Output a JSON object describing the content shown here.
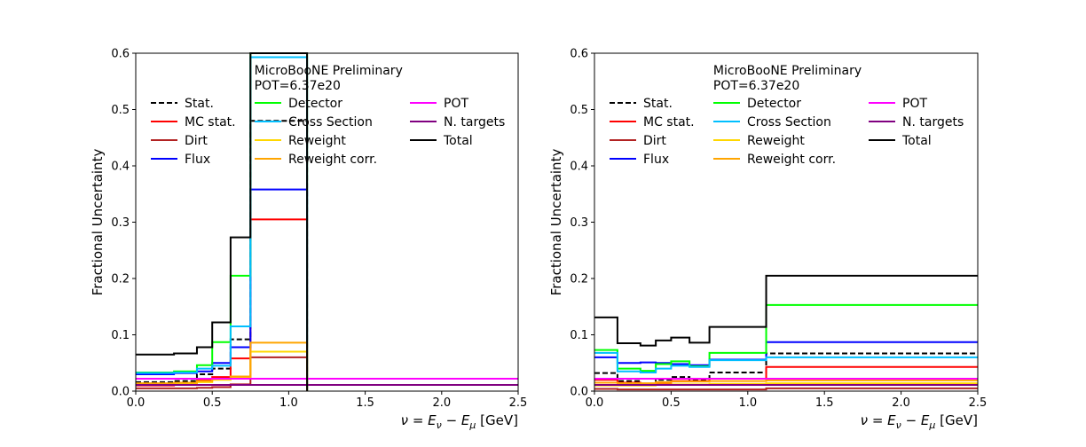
{
  "chart_data": [
    {
      "type": "step",
      "annotation": [
        "MicroBooNE Preliminary",
        "POT=6.37e20"
      ],
      "xlabel": "ν = E_ν − E_μ [GeV]",
      "ylabel": "Fractional Uncertainty",
      "xlim": [
        0.0,
        2.5
      ],
      "ylim": [
        0.0,
        0.6
      ],
      "xticks": [
        "0.0",
        "0.5",
        "1.0",
        "1.5",
        "2.0",
        "2.5"
      ],
      "yticks": [
        "0.0",
        "0.1",
        "0.2",
        "0.3",
        "0.4",
        "0.5",
        "0.6"
      ],
      "bin_edges": [
        0.0,
        0.25,
        0.4,
        0.5,
        0.62,
        0.75,
        1.12,
        2.5
      ],
      "grid": false,
      "legend_position": "upper-left, 3 columns",
      "series": [
        {
          "name": "Stat.",
          "color": "#000000",
          "dashed": true,
          "values": [
            0.016,
            0.018,
            0.03,
            0.04,
            0.092,
            0.48,
            null
          ]
        },
        {
          "name": "MC stat.",
          "color": "#ff0000",
          "dashed": false,
          "values": [
            0.01,
            0.012,
            0.02,
            0.025,
            0.058,
            0.305,
            null
          ]
        },
        {
          "name": "Dirt",
          "color": "#b22222",
          "dashed": false,
          "values": [
            0.005,
            0.005,
            0.006,
            0.007,
            0.012,
            0.06,
            null
          ]
        },
        {
          "name": "Flux",
          "color": "#0000ff",
          "dashed": false,
          "values": [
            0.03,
            0.032,
            0.035,
            0.05,
            0.078,
            0.358,
            null
          ]
        },
        {
          "name": "Detector",
          "color": "#00ff00",
          "dashed": false,
          "values": [
            0.033,
            0.035,
            0.046,
            0.087,
            0.205,
            0.6,
            null
          ]
        },
        {
          "name": "Cross Section",
          "color": "#00bfff",
          "dashed": false,
          "values": [
            0.032,
            0.033,
            0.04,
            0.045,
            0.115,
            0.593,
            null
          ]
        },
        {
          "name": "Reweight",
          "color": "#ffd700",
          "dashed": false,
          "values": [
            0.012,
            0.013,
            0.016,
            0.02,
            0.025,
            0.07,
            null
          ]
        },
        {
          "name": "Reweight corr.",
          "color": "#ffa500",
          "dashed": false,
          "values": [
            0.014,
            0.015,
            0.018,
            0.022,
            0.026,
            0.086,
            null
          ]
        },
        {
          "name": "POT",
          "color": "#ff00ff",
          "dashed": false,
          "values": [
            0.022,
            0.022,
            0.022,
            0.022,
            0.022,
            0.022,
            0.022
          ]
        },
        {
          "name": "N. targets",
          "color": "#800080",
          "dashed": false,
          "values": [
            0.011,
            0.011,
            0.011,
            0.011,
            0.011,
            0.011,
            0.011
          ]
        },
        {
          "name": "Total",
          "color": "#000000",
          "dashed": false,
          "values": [
            0.065,
            0.067,
            0.078,
            0.122,
            0.273,
            0.6,
            null
          ]
        }
      ]
    },
    {
      "type": "step",
      "annotation": [
        "MicroBooNE Preliminary",
        "POT=6.37e20"
      ],
      "xlabel": "ν = E_ν − E_μ [GeV]",
      "ylabel": "Fractional Uncertainty",
      "xlim": [
        0.0,
        2.5
      ],
      "ylim": [
        0.0,
        0.6
      ],
      "xticks": [
        "0.0",
        "0.5",
        "1.0",
        "1.5",
        "2.0",
        "2.5"
      ],
      "yticks": [
        "0.0",
        "0.1",
        "0.2",
        "0.3",
        "0.4",
        "0.5",
        "0.6"
      ],
      "bin_edges": [
        0.0,
        0.15,
        0.3,
        0.4,
        0.5,
        0.62,
        0.75,
        1.12,
        2.5
      ],
      "grid": false,
      "legend_position": "upper-left, 3 columns",
      "series": [
        {
          "name": "Stat.",
          "color": "#000000",
          "dashed": true,
          "values": [
            0.032,
            0.018,
            0.012,
            0.02,
            0.025,
            0.02,
            0.033,
            0.067
          ]
        },
        {
          "name": "MC stat.",
          "color": "#ff0000",
          "dashed": false,
          "values": [
            0.02,
            0.015,
            0.012,
            0.015,
            0.018,
            0.018,
            0.022,
            0.043
          ]
        },
        {
          "name": "Dirt",
          "color": "#b22222",
          "dashed": false,
          "values": [
            0.004,
            0.003,
            0.003,
            0.003,
            0.003,
            0.003,
            0.003,
            0.005
          ]
        },
        {
          "name": "Flux",
          "color": "#0000ff",
          "dashed": false,
          "values": [
            0.06,
            0.05,
            0.051,
            0.05,
            0.048,
            0.046,
            0.056,
            0.087
          ]
        },
        {
          "name": "Detector",
          "color": "#00ff00",
          "dashed": false,
          "values": [
            0.073,
            0.04,
            0.036,
            0.048,
            0.053,
            0.044,
            0.068,
            0.153
          ]
        },
        {
          "name": "Cross Section",
          "color": "#00bfff",
          "dashed": false,
          "values": [
            0.068,
            0.035,
            0.033,
            0.04,
            0.045,
            0.043,
            0.055,
            0.06
          ]
        },
        {
          "name": "Reweight",
          "color": "#ffd700",
          "dashed": false,
          "values": [
            0.01,
            0.01,
            0.01,
            0.012,
            0.012,
            0.012,
            0.013,
            0.014
          ]
        },
        {
          "name": "Reweight corr.",
          "color": "#ffa500",
          "dashed": false,
          "values": [
            0.015,
            0.014,
            0.014,
            0.016,
            0.017,
            0.017,
            0.018,
            0.019
          ]
        },
        {
          "name": "POT",
          "color": "#ff00ff",
          "dashed": false,
          "values": [
            0.022,
            0.022,
            0.022,
            0.022,
            0.022,
            0.022,
            0.022,
            0.022
          ]
        },
        {
          "name": "N. targets",
          "color": "#800080",
          "dashed": false,
          "values": [
            0.011,
            0.011,
            0.011,
            0.011,
            0.011,
            0.011,
            0.011,
            0.011
          ]
        },
        {
          "name": "Total",
          "color": "#000000",
          "dashed": false,
          "values": [
            0.131,
            0.085,
            0.081,
            0.09,
            0.095,
            0.086,
            0.114,
            0.205
          ]
        }
      ]
    }
  ]
}
